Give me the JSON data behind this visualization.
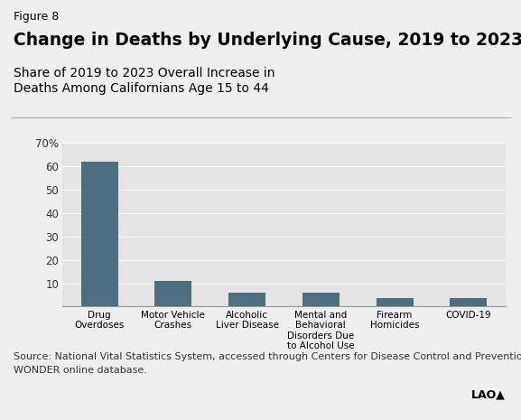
{
  "figure_label": "Figure 8",
  "title": "Change in Deaths by Underlying Cause, 2019 to 2023",
  "subtitle_line1": "Share of 2019 to 2023 Overall Increase in",
  "subtitle_line2": "Deaths Among Californians Age 15 to 44",
  "source_line1": "Source: National Vital Statistics System, accessed through Centers for Disease Control and Prevention",
  "source_line2": "WONDER online database.",
  "categories": [
    "Drug\nOverdoses",
    "Motor Vehicle\nCrashes",
    "Alcoholic\nLiver Disease",
    "Mental and\nBehavioral\nDisorders Due\nto Alcohol Use",
    "Firearm\nHomicides",
    "COVID-19"
  ],
  "values": [
    62,
    11,
    6,
    6,
    3.5,
    3.5
  ],
  "bar_color": "#4d6e7e",
  "background_color": "#efefef",
  "plot_bg_color": "#e4e4e4",
  "ylim": [
    0,
    70
  ],
  "yticks": [
    10,
    20,
    30,
    40,
    50,
    60,
    70
  ],
  "title_fontsize": 13.5,
  "subtitle_fontsize": 10,
  "figure_label_fontsize": 9,
  "source_fontsize": 8,
  "tick_fontsize": 8.5,
  "xtick_fontsize": 7.5,
  "bar_width": 0.5
}
